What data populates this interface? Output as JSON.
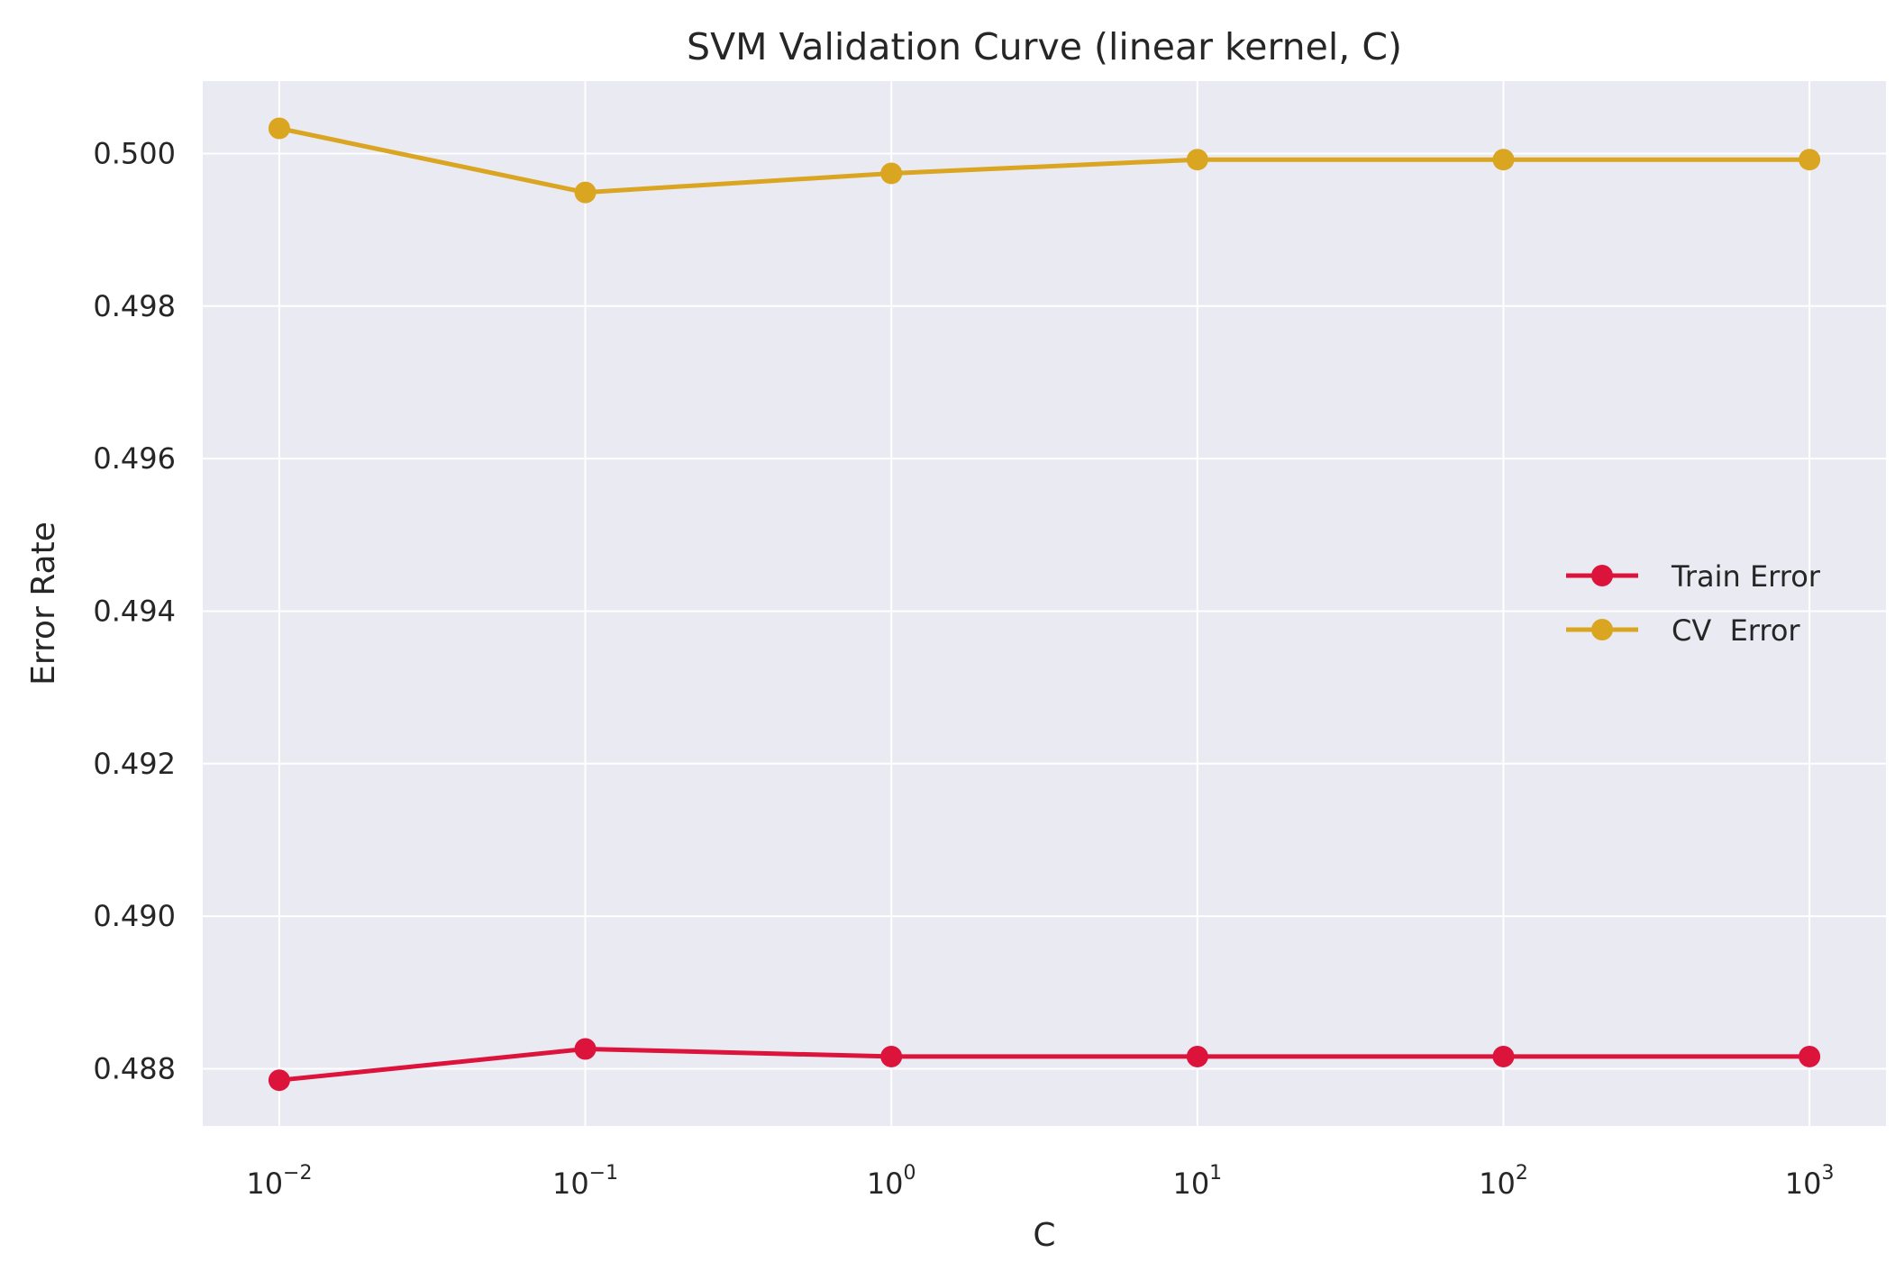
{
  "chart_data": {
    "type": "line",
    "title": "SVM Validation Curve (linear kernel, C)",
    "xlabel": "C",
    "ylabel": "Error Rate",
    "x_scale": "log",
    "x": [
      0.01,
      0.1,
      1,
      10,
      100,
      1000
    ],
    "x_tick_labels": [
      {
        "base": "10",
        "exp": "−2"
      },
      {
        "base": "10",
        "exp": "−1"
      },
      {
        "base": "10",
        "exp": "0"
      },
      {
        "base": "10",
        "exp": "1"
      },
      {
        "base": "10",
        "exp": "2"
      },
      {
        "base": "10",
        "exp": "3"
      }
    ],
    "y_ticks": [
      "0.488",
      "0.490",
      "0.492",
      "0.494",
      "0.496",
      "0.498",
      "0.500"
    ],
    "ylim": [
      0.48725,
      0.50095
    ],
    "xlim_log10": [
      -2.25,
      3.25
    ],
    "grid": true,
    "legend_position": "center-right",
    "series": [
      {
        "name": "Train Error",
        "color": "#DC143C",
        "values": [
          0.48785,
          0.48826,
          0.48816,
          0.48816,
          0.48816,
          0.48816
        ]
      },
      {
        "name": "CV  Error",
        "color": "#DAA520",
        "values": [
          0.50033,
          0.49949,
          0.49974,
          0.49992,
          0.49992,
          0.49992
        ]
      }
    ]
  },
  "colors": {
    "plot_background": "#EAEAF2",
    "grid": "#FFFFFF",
    "text": "#262626"
  }
}
